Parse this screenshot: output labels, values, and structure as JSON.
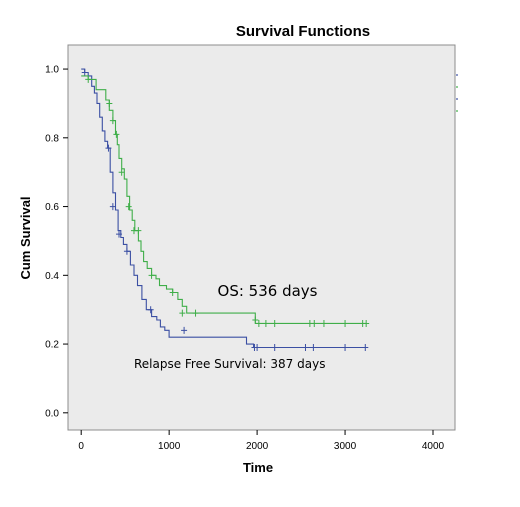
{
  "chart_data": {
    "type": "line",
    "title": "Survival Functions",
    "xlabel": "Time",
    "ylabel": "Cum Survival",
    "xlim": [
      -150,
      4250
    ],
    "ylim": [
      -0.05,
      1.07
    ],
    "xticks": [
      0,
      1000,
      2000,
      3000,
      4000
    ],
    "yticks": [
      0.0,
      0.2,
      0.4,
      0.6,
      0.8,
      1.0
    ],
    "ytick_labels": [
      "0.0",
      "0.2",
      "0.4",
      "0.6",
      "0.8",
      "1.0"
    ],
    "grid": false,
    "colors": {
      "plot_bg": "#ebebeb",
      "frame": "#8c8c8c"
    },
    "annotations": [
      {
        "text": "OS: 536 days",
        "x": 1550,
        "y": 0.34,
        "size": 15
      },
      {
        "text": "Relapse Free Survival: 387 days",
        "x": 600,
        "y": 0.13,
        "size": 12
      }
    ],
    "series": [
      {
        "color": "#3b4fa3",
        "steps": [
          [
            0,
            1.0
          ],
          [
            40,
            0.99
          ],
          [
            80,
            0.98
          ],
          [
            120,
            0.95
          ],
          [
            150,
            0.93
          ],
          [
            180,
            0.9
          ],
          [
            210,
            0.86
          ],
          [
            240,
            0.82
          ],
          [
            270,
            0.79
          ],
          [
            300,
            0.77
          ],
          [
            330,
            0.7
          ],
          [
            360,
            0.64
          ],
          [
            390,
            0.59
          ],
          [
            420,
            0.53
          ],
          [
            450,
            0.51
          ],
          [
            480,
            0.49
          ],
          [
            520,
            0.47
          ],
          [
            560,
            0.43
          ],
          [
            600,
            0.4
          ],
          [
            640,
            0.37
          ],
          [
            690,
            0.33
          ],
          [
            740,
            0.3
          ],
          [
            800,
            0.28
          ],
          [
            860,
            0.27
          ],
          [
            900,
            0.25
          ],
          [
            950,
            0.24
          ],
          [
            1000,
            0.22
          ],
          [
            1880,
            0.2
          ],
          [
            1960,
            0.19
          ],
          [
            3240,
            0.19
          ]
        ],
        "censored": [
          [
            40,
            0.99
          ],
          [
            310,
            0.77
          ],
          [
            360,
            0.6
          ],
          [
            430,
            0.52
          ],
          [
            520,
            0.47
          ],
          [
            790,
            0.3
          ],
          [
            1170,
            0.24
          ],
          [
            1970,
            0.19
          ],
          [
            2000,
            0.19
          ],
          [
            2200,
            0.19
          ],
          [
            2550,
            0.19
          ],
          [
            2640,
            0.19
          ],
          [
            3000,
            0.19
          ],
          [
            3230,
            0.19
          ]
        ]
      },
      {
        "color": "#3fae49",
        "steps": [
          [
            0,
            0.98
          ],
          [
            80,
            0.97
          ],
          [
            170,
            0.94
          ],
          [
            280,
            0.91
          ],
          [
            320,
            0.88
          ],
          [
            360,
            0.85
          ],
          [
            390,
            0.81
          ],
          [
            410,
            0.78
          ],
          [
            430,
            0.74
          ],
          [
            460,
            0.71
          ],
          [
            490,
            0.68
          ],
          [
            520,
            0.63
          ],
          [
            550,
            0.59
          ],
          [
            580,
            0.56
          ],
          [
            610,
            0.53
          ],
          [
            650,
            0.5
          ],
          [
            680,
            0.47
          ],
          [
            710,
            0.44
          ],
          [
            750,
            0.42
          ],
          [
            800,
            0.4
          ],
          [
            850,
            0.39
          ],
          [
            890,
            0.37
          ],
          [
            970,
            0.36
          ],
          [
            1040,
            0.35
          ],
          [
            1100,
            0.33
          ],
          [
            1150,
            0.31
          ],
          [
            1200,
            0.29
          ],
          [
            1980,
            0.26
          ],
          [
            3240,
            0.26
          ]
        ],
        "censored": [
          [
            80,
            0.97
          ],
          [
            320,
            0.9
          ],
          [
            360,
            0.85
          ],
          [
            400,
            0.81
          ],
          [
            460,
            0.7
          ],
          [
            540,
            0.6
          ],
          [
            600,
            0.53
          ],
          [
            650,
            0.53
          ],
          [
            800,
            0.4
          ],
          [
            1040,
            0.35
          ],
          [
            1150,
            0.29
          ],
          [
            1300,
            0.29
          ],
          [
            1980,
            0.27
          ],
          [
            2020,
            0.26
          ],
          [
            2100,
            0.26
          ],
          [
            2200,
            0.26
          ],
          [
            2600,
            0.26
          ],
          [
            2650,
            0.26
          ],
          [
            2760,
            0.26
          ],
          [
            3000,
            0.26
          ],
          [
            3200,
            0.26
          ],
          [
            3240,
            0.26
          ]
        ]
      }
    ]
  }
}
